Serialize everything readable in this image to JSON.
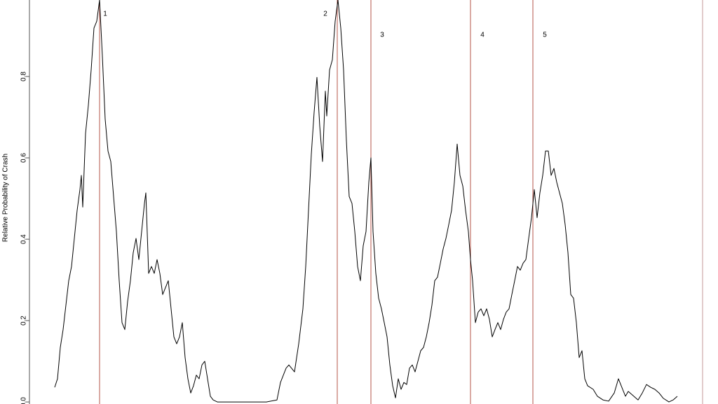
{
  "chart_data": {
    "type": "line",
    "ylabel": "Relative Probability of Crash",
    "xlim": [
      -42,
      982
    ],
    "ylim": [
      -0.005,
      0.988
    ],
    "yticks": [
      {
        "value": 0,
        "label": "0.0"
      },
      0.2,
      0.4,
      0.6,
      0.8
    ],
    "series": [
      {
        "color": "#000000",
        "x": [
          36,
          40,
          44,
          48,
          52,
          56,
          60,
          64,
          68,
          72,
          74,
          76,
          80,
          84,
          88,
          92,
          96,
          100,
          104,
          108,
          112,
          116,
          120,
          124,
          128,
          132,
          136,
          140,
          144,
          148,
          152,
          156,
          160,
          164,
          166,
          170,
          174,
          178,
          182,
          186,
          190,
          194,
          198,
          202,
          206,
          210,
          214,
          218,
          222,
          226,
          230,
          234,
          238,
          242,
          246,
          250,
          254,
          258,
          262,
          268,
          278,
          298,
          318,
          338,
          353,
          358,
          366,
          370,
          378,
          384,
          390,
          394,
          398,
          402,
          406,
          410,
          414,
          418,
          422,
          424,
          428,
          432,
          436,
          440,
          444,
          448,
          452,
          456,
          460,
          464,
          468,
          472,
          476,
          480,
          484,
          487,
          490,
          494,
          498,
          502,
          506,
          510,
          514,
          518,
          522,
          526,
          530,
          534,
          538,
          542,
          546,
          550,
          554,
          558,
          562,
          566,
          570,
          574,
          578,
          582,
          586,
          590,
          594,
          598,
          602,
          606,
          610,
          614,
          618,
          622,
          626,
          629,
          632,
          636,
          640,
          644,
          648,
          652,
          656,
          660,
          664,
          668,
          672,
          676,
          680,
          684,
          688,
          692,
          696,
          700,
          704,
          708,
          712,
          716,
          720,
          724,
          728,
          732,
          736,
          740,
          744,
          748,
          752,
          756,
          760,
          764,
          768,
          772,
          776,
          780,
          784,
          788,
          792,
          796,
          804,
          810,
          818,
          826,
          834,
          840,
          846,
          850,
          854,
          862,
          868,
          874,
          880,
          886,
          892,
          898,
          904,
          912,
          918,
          924
        ],
        "values": [
          0.036,
          0.057,
          0.134,
          0.178,
          0.238,
          0.298,
          0.333,
          0.402,
          0.471,
          0.522,
          0.557,
          0.479,
          0.66,
          0.729,
          0.816,
          0.919,
          0.936,
          0.988,
          0.85,
          0.695,
          0.617,
          0.591,
          0.505,
          0.419,
          0.298,
          0.195,
          0.178,
          0.247,
          0.298,
          0.367,
          0.402,
          0.35,
          0.419,
          0.488,
          0.514,
          0.316,
          0.333,
          0.316,
          0.35,
          0.316,
          0.264,
          0.281,
          0.298,
          0.229,
          0.16,
          0.143,
          0.16,
          0.195,
          0.109,
          0.057,
          0.022,
          0.04,
          0.066,
          0.057,
          0.091,
          0.1,
          0.057,
          0.014,
          0.005,
          0,
          0,
          0,
          0,
          0,
          0.005,
          0.048,
          0.083,
          0.091,
          0.074,
          0.143,
          0.229,
          0.333,
          0.471,
          0.609,
          0.712,
          0.798,
          0.678,
          0.591,
          0.764,
          0.703,
          0.816,
          0.841,
          0.936,
          0.988,
          0.919,
          0.816,
          0.643,
          0.505,
          0.488,
          0.419,
          0.333,
          0.298,
          0.384,
          0.419,
          0.54,
          0.6,
          0.419,
          0.316,
          0.255,
          0.229,
          0.195,
          0.16,
          0.091,
          0.04,
          0.01,
          0.057,
          0.031,
          0.048,
          0.043,
          0.083,
          0.091,
          0.074,
          0.1,
          0.126,
          0.134,
          0.16,
          0.195,
          0.238,
          0.298,
          0.307,
          0.341,
          0.376,
          0.402,
          0.436,
          0.471,
          0.54,
          0.634,
          0.557,
          0.531,
          0.471,
          0.419,
          0.35,
          0.298,
          0.195,
          0.221,
          0.229,
          0.212,
          0.229,
          0.203,
          0.16,
          0.178,
          0.195,
          0.178,
          0.203,
          0.221,
          0.229,
          0.264,
          0.298,
          0.333,
          0.324,
          0.341,
          0.35,
          0.402,
          0.453,
          0.522,
          0.453,
          0.514,
          0.557,
          0.617,
          0.617,
          0.557,
          0.574,
          0.54,
          0.514,
          0.488,
          0.436,
          0.367,
          0.264,
          0.255,
          0.195,
          0.109,
          0.126,
          0.057,
          0.04,
          0.031,
          0.014,
          0.005,
          0.002,
          0.022,
          0.057,
          0.031,
          0.014,
          0.026,
          0.014,
          0.005,
          0.022,
          0.043,
          0.036,
          0.031,
          0.022,
          0.009,
          0,
          0.005,
          0.014
        ]
      }
    ],
    "events": {
      "color": "#b5564a",
      "x": [
        100,
        439,
        487,
        629,
        718
      ],
      "labels": [
        "1",
        "2",
        "3",
        "4",
        "5"
      ]
    }
  }
}
